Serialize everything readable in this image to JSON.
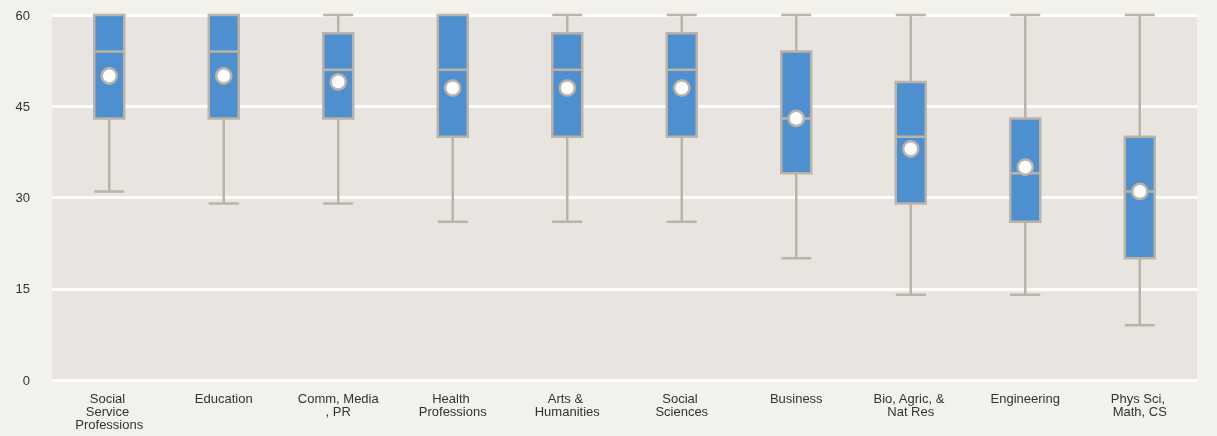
{
  "chart_data": {
    "type": "box",
    "categories": [
      "Social Service Professions",
      "Education",
      "Comm, Media, PR",
      "Health Professions",
      "Arts & Humanities",
      "Social Sciences",
      "Business",
      "Bio, Agric, & Nat Res",
      "Engineering",
      "Phys Sci, Math, CS"
    ],
    "series": [
      {
        "color": "#4e8fcf",
        "boxes": [
          {
            "low": 31,
            "q1": 43,
            "median": 54,
            "q3": 60,
            "high": 60,
            "mean": 50
          },
          {
            "low": 29,
            "q1": 43,
            "median": 54,
            "q3": 60,
            "high": 60,
            "mean": 50
          },
          {
            "low": 29,
            "q1": 43,
            "median": 51,
            "q3": 57,
            "high": 60,
            "mean": 49
          },
          {
            "low": 26,
            "q1": 40,
            "median": 51,
            "q3": 60,
            "high": 60,
            "mean": 48
          },
          {
            "low": 26,
            "q1": 40,
            "median": 51,
            "q3": 57,
            "high": 60,
            "mean": 48
          },
          {
            "low": 26,
            "q1": 40,
            "median": 51,
            "q3": 57,
            "high": 60,
            "mean": 48
          },
          {
            "low": 20,
            "q1": 34,
            "median": 43,
            "q3": 54,
            "high": 60,
            "mean": 43
          },
          {
            "low": 14,
            "q1": 29,
            "median": 40,
            "q3": 49,
            "high": 60,
            "mean": 38
          },
          {
            "low": 14,
            "q1": 26,
            "median": 34,
            "q3": 43,
            "high": 60,
            "mean": 35
          },
          {
            "low": 9,
            "q1": 20,
            "median": 31,
            "q3": 40,
            "high": 60,
            "mean": 31
          }
        ]
      }
    ],
    "ylim": [
      0,
      60
    ],
    "yticks": [
      0,
      15,
      30,
      45,
      60
    ],
    "grid": "y",
    "marker": "circle"
  }
}
